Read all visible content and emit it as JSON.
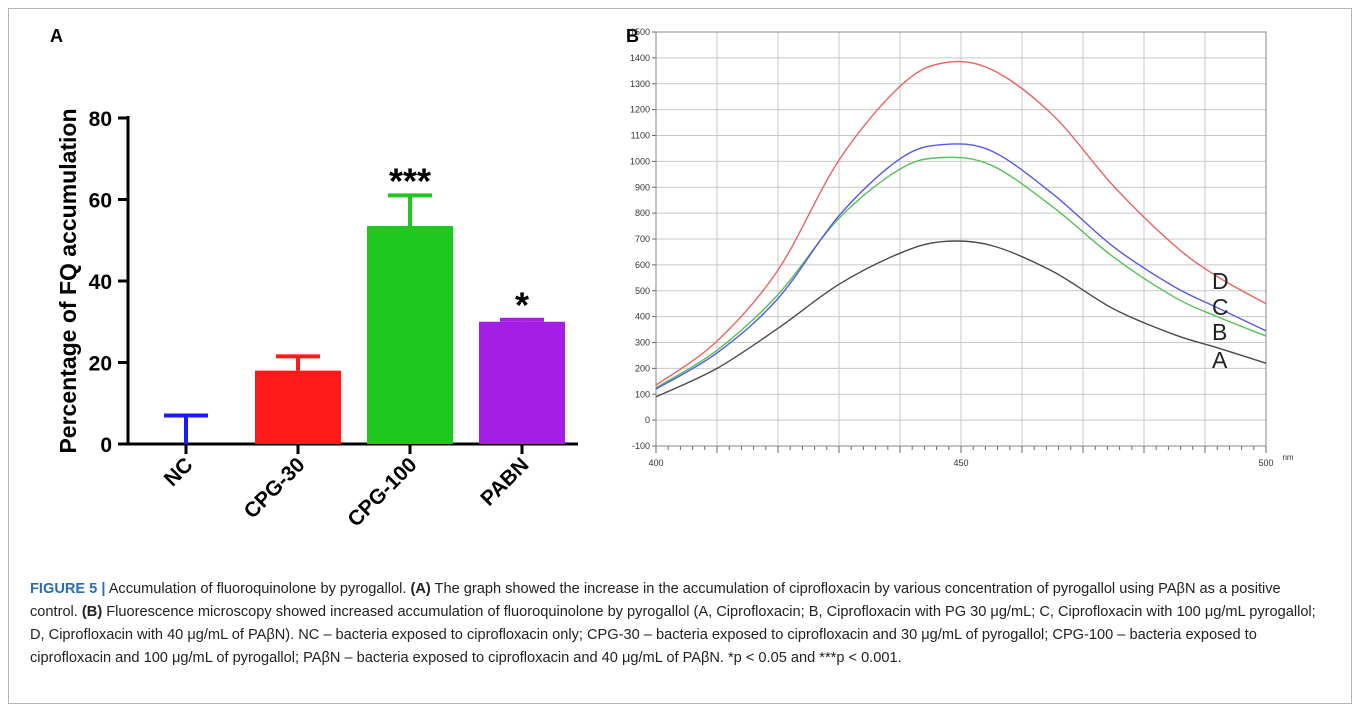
{
  "panel_a_label": "A",
  "panel_b_label": "B",
  "caption": {
    "figure_label": "FIGURE 5 |",
    "title": " Accumulation of fluoroquinolone by pyrogallol. ",
    "part_a_label": "(A)",
    "part_a_text": " The graph showed the increase in the accumulation of ciprofloxacin by various concentration of pyrogallol using PAβN as a positive control. ",
    "part_b_label": "(B)",
    "part_b_text": " Fluorescence microscopy showed increased accumulation of fluoroquinolone by pyrogallol (A, Ciprofloxacin; B, Ciprofloxacin with PG 30 μg/mL; C, Ciprofloxacin with 100 μg/mL pyrogallol; D, Ciprofloxacin with 40 μg/mL of PAβN). NC – bacteria exposed to ciprofloxacin only; CPG-30 – bacteria exposed to ciprofloxacin and 30 μg/mL of pyrogallol; CPG-100 – bacteria exposed to ciprofloxacin and 100 μg/mL of pyrogallol; PAβN – bacteria exposed to ciprofloxacin and 40 μg/mL of PAβN. *p < 0.05 and ***p < 0.001."
  },
  "chart_data": [
    {
      "type": "bar",
      "ylabel": "Percentage of FQ accumulation",
      "xlabel": "",
      "ylim": [
        0,
        80
      ],
      "yticks": [
        0,
        20,
        40,
        60,
        80
      ],
      "categories": [
        "NC",
        "CPG-30",
        "CPG-100",
        "PABN"
      ],
      "values": [
        0,
        18,
        53.5,
        30
      ],
      "errors": [
        7,
        3.5,
        7.5,
        0.5
      ],
      "colors": [
        "#1a1aff",
        "#ff1a1a",
        "#1ec81e",
        "#a51ee6"
      ],
      "annotations": [
        "",
        "",
        "***",
        "*"
      ]
    },
    {
      "type": "line",
      "x_unit": "nm",
      "xlim": [
        400,
        500
      ],
      "ylim": [
        -100,
        1500
      ],
      "xtick_labels": [
        "400",
        "450",
        "500"
      ],
      "yticks": [
        -100,
        0,
        100,
        200,
        300,
        400,
        500,
        600,
        700,
        800,
        900,
        1000,
        1100,
        1200,
        1300,
        1400,
        1500
      ],
      "grid": true,
      "series": [
        {
          "name": "A",
          "color": "#4a4a4a",
          "x": [
            400,
            410,
            420,
            430,
            440,
            447,
            455,
            465,
            475,
            485,
            492,
            500
          ],
          "y": [
            90,
            200,
            355,
            525,
            645,
            690,
            675,
            575,
            430,
            330,
            280,
            220
          ]
        },
        {
          "name": "B",
          "color": "#58c058",
          "x": [
            400,
            410,
            420,
            430,
            440,
            447,
            455,
            465,
            475,
            485,
            492,
            500
          ],
          "y": [
            125,
            270,
            485,
            780,
            970,
            1015,
            985,
            825,
            630,
            475,
            400,
            325
          ]
        },
        {
          "name": "C",
          "color": "#5858e6",
          "x": [
            400,
            410,
            420,
            430,
            440,
            447,
            455,
            465,
            475,
            485,
            492,
            500
          ],
          "y": [
            120,
            260,
            470,
            790,
            1010,
            1065,
            1040,
            875,
            670,
            515,
            435,
            345
          ]
        },
        {
          "name": "D",
          "color": "#e86464",
          "x": [
            400,
            410,
            420,
            430,
            440,
            447,
            455,
            465,
            475,
            485,
            492,
            500
          ],
          "y": [
            135,
            305,
            580,
            1005,
            1290,
            1380,
            1355,
            1180,
            905,
            675,
            555,
            450
          ]
        }
      ]
    }
  ]
}
